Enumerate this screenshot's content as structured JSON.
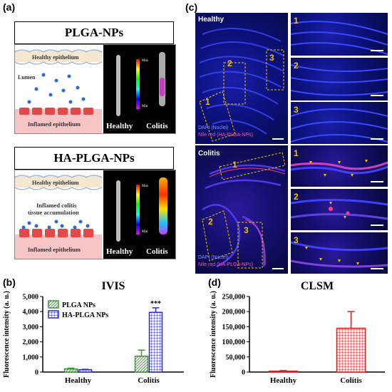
{
  "panels": {
    "a": {
      "letter": "(a)",
      "top": {
        "title": "PLGA-NPs",
        "labels": {
          "healthy_epithelium": "Healthy epithelium",
          "lumen": "Lumen",
          "inflamed_epithelium": "Inflamed epithelium"
        },
        "scale": {
          "max": "Max",
          "min": "Min"
        },
        "captions": {
          "healthy": "Healthy",
          "colitis": "Colitis"
        }
      },
      "bottom": {
        "title": "HA-PLGA-NPs",
        "labels": {
          "healthy_epithelium": "Healthy epithelium",
          "accumulation_line1": "Inflamed colitis",
          "accumulation_line2": "tissue accumulation",
          "inflamed_epithelium": "Inflamed epithelium"
        },
        "scale": {
          "max": "Max",
          "min": "Min"
        },
        "captions": {
          "healthy": "Healthy",
          "colitis": "Colitis"
        }
      }
    },
    "c": {
      "letter": "(c)",
      "healthy": {
        "label": "Healthy",
        "overview_numbers": [
          "1",
          "2",
          "3"
        ],
        "legend_dapi": "DAPI (Nuclei)",
        "legend_nile": "Nile red (HA-PLGA-NPs)",
        "inset_numbers": [
          "1",
          "2",
          "3"
        ]
      },
      "colitis": {
        "label": "Colitis",
        "overview_numbers": [
          "1",
          "2",
          "3"
        ],
        "legend_dapi": "DAPI (Nuclei)",
        "legend_nile": "Nile red (HA-PLGA-NPs)",
        "inset_numbers": [
          "1",
          "2",
          "3"
        ]
      }
    },
    "b": {
      "letter": "(b)"
    },
    "d": {
      "letter": "(d)"
    }
  },
  "colors": {
    "plga_green": "#3a9a3a",
    "ha_blue": "#2a2ad0",
    "clsm_red": "#e02020",
    "dapi_blue": "#1520c0",
    "nile_red": "#ff3a8a",
    "roi_yellow": "#f2c200"
  },
  "chart_data": [
    {
      "type": "bar",
      "title": "IVIS",
      "ylabel": "Fluorescence intensity (a. u.)",
      "xlabel": "",
      "categories": [
        "Healthy",
        "Colitis"
      ],
      "series": [
        {
          "name": "PLGA NPs",
          "values": [
            200,
            1050
          ],
          "errors": [
            60,
            400
          ]
        },
        {
          "name": "HA-PLGA NPs",
          "values": [
            150,
            3950
          ],
          "errors": [
            30,
            300
          ]
        }
      ],
      "ylim": [
        0,
        5000
      ],
      "yticks": [
        "0",
        "1,000",
        "2,000",
        "3,000",
        "4,000",
        "5,000"
      ],
      "annotations": [
        {
          "text": "***",
          "category": "Colitis",
          "series": "HA-PLGA NPs"
        }
      ],
      "legend": "top-left"
    },
    {
      "type": "bar",
      "title": "CLSM",
      "ylabel": "Fluorescence intensity (a. u.)",
      "xlabel": "",
      "categories": [
        "Healthy",
        "Colitis"
      ],
      "series": [
        {
          "values": [
            3000,
            145000
          ],
          "errors": [
            2000,
            55000
          ]
        }
      ],
      "ylim": [
        0,
        250000
      ],
      "yticks": [
        "0",
        "50,000",
        "100,000",
        "150,000",
        "200,000",
        "250,000"
      ]
    }
  ]
}
